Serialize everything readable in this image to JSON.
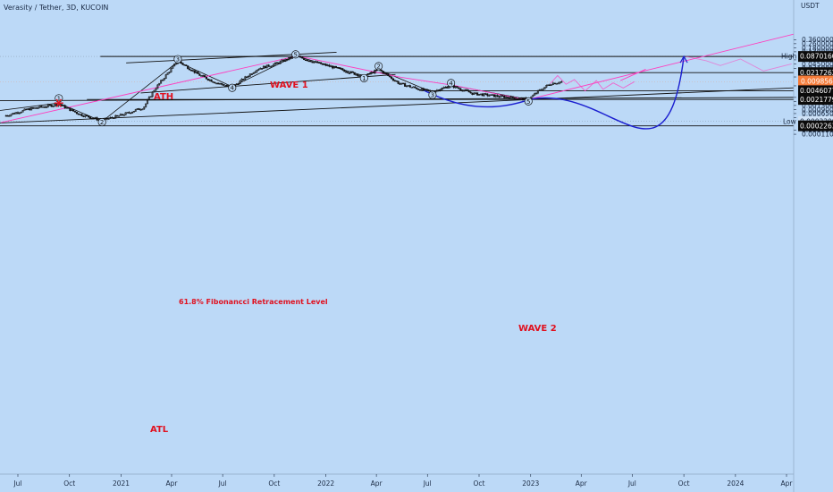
{
  "header": {
    "title": "Verasity / Tether, 3D, KUCOIN"
  },
  "chart_data": {
    "type": "candlestick",
    "ylabel": "USDT",
    "y_scale": "log",
    "ylim": [
      0.00011,
      0.5
    ],
    "x_ticks": [
      "Jul",
      "Oct",
      "2021",
      "Apr",
      "Jul",
      "Oct",
      "2022",
      "Apr",
      "Jul",
      "Oct",
      "2023",
      "Apr",
      "Jul",
      "Oct",
      "2024",
      "Apr"
    ],
    "x_tick_dates": [
      "2020-07-01",
      "2020-10-01",
      "2021-01-01",
      "2021-04-01",
      "2021-07-01",
      "2021-10-01",
      "2022-01-01",
      "2022-04-01",
      "2022-07-01",
      "2022-10-01",
      "2023-01-01",
      "2023-04-01",
      "2023-07-01",
      "2023-10-01",
      "2024-01-01",
      "2024-04-01"
    ],
    "y_ticks": [
      "0.36000000",
      "0.26000000",
      "0.18000000",
      "0.13000000",
      "0.06500000",
      "0.04500000",
      "0.03100000",
      "0.01500000",
      "0.00700000",
      "0.00260000",
      "0.00180000",
      "0.00130000",
      "0.00090000",
      "0.00065000",
      "0.00045000",
      "0.00015500",
      "0.00011000"
    ],
    "y_tick_values": [
      0.36,
      0.26,
      0.18,
      0.13,
      0.065,
      0.045,
      0.031,
      0.015,
      0.007,
      0.0026,
      0.0018,
      0.0013,
      0.0009,
      0.00065,
      0.00045,
      0.000155,
      0.00011
    ],
    "price_boxes": [
      {
        "label": "0.08701600",
        "value": 0.087016,
        "kind": "black"
      },
      {
        "label": "0.02172620",
        "value": 0.0217262,
        "kind": "black"
      },
      {
        "label": "0.00985637",
        "sub": "2d 4h",
        "value": 0.00985637,
        "kind": "current"
      },
      {
        "label": "0.00460779",
        "value": 0.00460779,
        "kind": "black"
      },
      {
        "label": "0.00217790",
        "value": 0.0021779,
        "kind": "black"
      },
      {
        "label": "0.00033005",
        "value": 0.00033005,
        "kind": "plain"
      },
      {
        "label": "0.00022638",
        "value": 0.00022638,
        "kind": "black"
      }
    ],
    "high_label": {
      "text": "High",
      "value": "0.08741500",
      "level": 0.087415
    },
    "low_label": {
      "text": "Low",
      "level": 0.00033005
    },
    "horizontal_levels": [
      {
        "value": 0.087016,
        "from": "2020-11-25",
        "to": "2024-04-15"
      },
      {
        "value": 0.0217262,
        "from": "2022-03-20",
        "to": "2024-04-15"
      },
      {
        "value": 0.00460779,
        "from": "2022-06-20",
        "to": "2024-04-15"
      },
      {
        "value": 0.0021779,
        "from": "2020-11-01",
        "to": "2024-04-15"
      },
      {
        "value": 0.00022638,
        "from": "2020-05-15",
        "to": "2024-04-15"
      }
    ],
    "annotations": {
      "ath": "ATH",
      "atl": "ATL",
      "wave1": "WAVE 1",
      "wave2": "WAVE 2",
      "fib": "61.8% Fibonancci Retracement Level"
    },
    "wave_counts": [
      {
        "n": "1",
        "date": "2020-09-12",
        "price": 0.0024
      },
      {
        "n": "2",
        "date": "2020-11-28",
        "price": 0.00031
      },
      {
        "n": "3",
        "date": "2021-04-12",
        "price": 0.069
      },
      {
        "n": "4",
        "date": "2021-07-18",
        "price": 0.0059
      },
      {
        "n": "5",
        "date": "2021-11-08",
        "price": 0.104
      },
      {
        "n": "1",
        "date": "2022-03-10",
        "price": 0.0135
      },
      {
        "n": "2",
        "date": "2022-04-05",
        "price": 0.038
      },
      {
        "n": "3",
        "date": "2022-07-10",
        "price": 0.0032
      },
      {
        "n": "4",
        "date": "2022-08-12",
        "price": 0.0089
      },
      {
        "n": "5",
        "date": "2022-12-28",
        "price": 0.00185
      }
    ]
  },
  "colors": {
    "background": "#bcd9f7",
    "candle": "#111111",
    "pink": "#ff3fbf",
    "blue": "#1b1fd0",
    "label_red": "#e0111f",
    "current_price": "#f57c3a"
  }
}
